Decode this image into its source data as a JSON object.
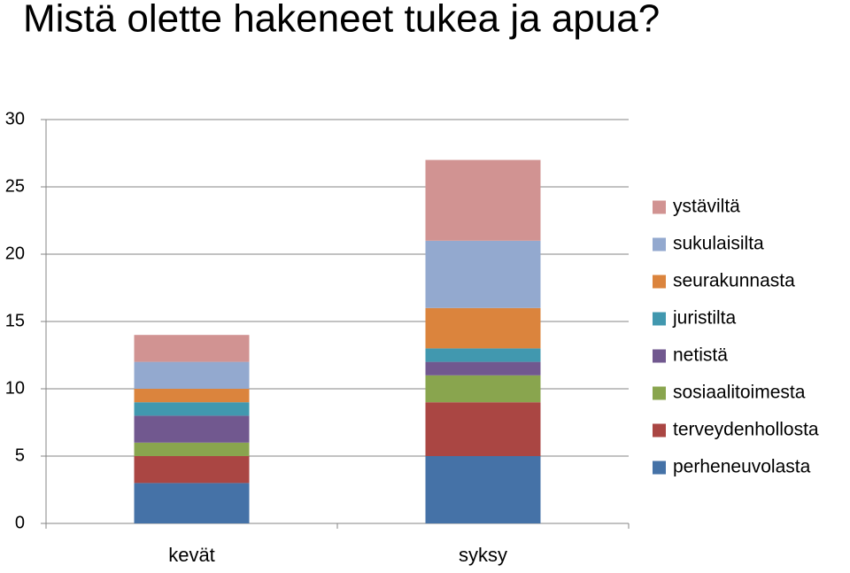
{
  "chart_data": {
    "type": "stacked_bar",
    "title": "Mistä olette hakeneet tukea ja apua?",
    "categories": [
      "kevät",
      "syksy"
    ],
    "series": [
      {
        "name": "perheneuvolasta",
        "color": "#4572a7",
        "values": [
          3,
          5
        ]
      },
      {
        "name": "terveydenhollosta",
        "color": "#aa4643",
        "values": [
          2,
          4
        ]
      },
      {
        "name": "sosiaalitoimesta",
        "color": "#89a54e",
        "values": [
          1,
          2
        ]
      },
      {
        "name": "netistä",
        "color": "#71588f",
        "values": [
          2,
          1
        ]
      },
      {
        "name": "juristilta",
        "color": "#4198af",
        "values": [
          1,
          1
        ]
      },
      {
        "name": "seurakunnasta",
        "color": "#db843d",
        "values": [
          1,
          3
        ]
      },
      {
        "name": "sukulaisilta",
        "color": "#93a9cf",
        "values": [
          2,
          5
        ]
      },
      {
        "name": "ystäviltä",
        "color": "#d19392",
        "values": [
          2,
          6
        ]
      }
    ],
    "ylim": [
      0,
      30
    ],
    "yticks": [
      0,
      5,
      10,
      15,
      20,
      25,
      30
    ],
    "grid": true,
    "legend": "right"
  }
}
